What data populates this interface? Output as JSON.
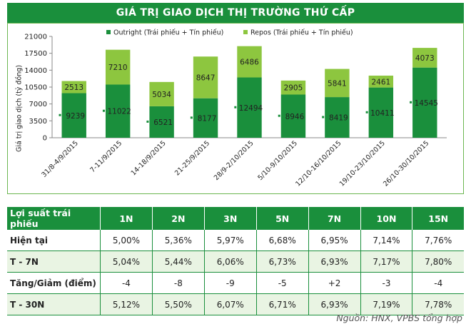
{
  "title": "GIÁ TRỊ GIAO DỊCH THỊ TRƯỜNG THỨ CẤP",
  "colors": {
    "outright": "#1a8f3c",
    "repos": "#8dc63f",
    "banner": "#1a8f3c"
  },
  "chart_data": {
    "type": "bar",
    "stacked": true,
    "ylabel": "Giá trị giao dịch (tỷ đồng)",
    "xlabel": "",
    "ylim": [
      0,
      21000
    ],
    "yticks": [
      0,
      3500,
      7000,
      10500,
      14000,
      17500,
      21000
    ],
    "grid": false,
    "legend_position": "top",
    "categories": [
      "31/8-4/9/2015",
      "7-11/9/2015",
      "14-18/9/2015",
      "21-25/9/2015",
      "28/9-2/10/2015",
      "5/10-9/10/2015",
      "12/10-16/10/2015",
      "19/10-23/10/2015",
      "26/10-30/10/2015"
    ],
    "series": [
      {
        "name": "Outright (Trái phiếu + Tín phiếu)",
        "values": [
          9239,
          11022,
          6521,
          8177,
          12494,
          8946,
          8419,
          10411,
          14545
        ]
      },
      {
        "name": "Repos (Trái phiếu + Tín phiếu)",
        "values": [
          2513,
          7210,
          5034,
          8647,
          6486,
          2905,
          5841,
          2461,
          4073
        ]
      }
    ]
  },
  "table": {
    "headers": [
      "Lợi suất trái phiếu",
      "1N",
      "2N",
      "3N",
      "5N",
      "7N",
      "10N",
      "15N"
    ],
    "rows": [
      [
        "Hiện tại",
        "5,00%",
        "5,36%",
        "5,97%",
        "6,68%",
        "6,95%",
        "7,14%",
        "7,76%"
      ],
      [
        "T - 7N",
        "5,04%",
        "5,44%",
        "6,06%",
        "6,73%",
        "6,93%",
        "7,17%",
        "7,80%"
      ],
      [
        "Tăng/Giảm (điểm)",
        "-4",
        "-8",
        "-9",
        "-5",
        "+2",
        "-3",
        "-4"
      ],
      [
        "T - 30N",
        "5,12%",
        "5,50%",
        "6,07%",
        "6,71%",
        "6,93%",
        "7,19%",
        "7,78%"
      ]
    ]
  },
  "source": "Nguồn: HNX, VPBS tổng hợp"
}
